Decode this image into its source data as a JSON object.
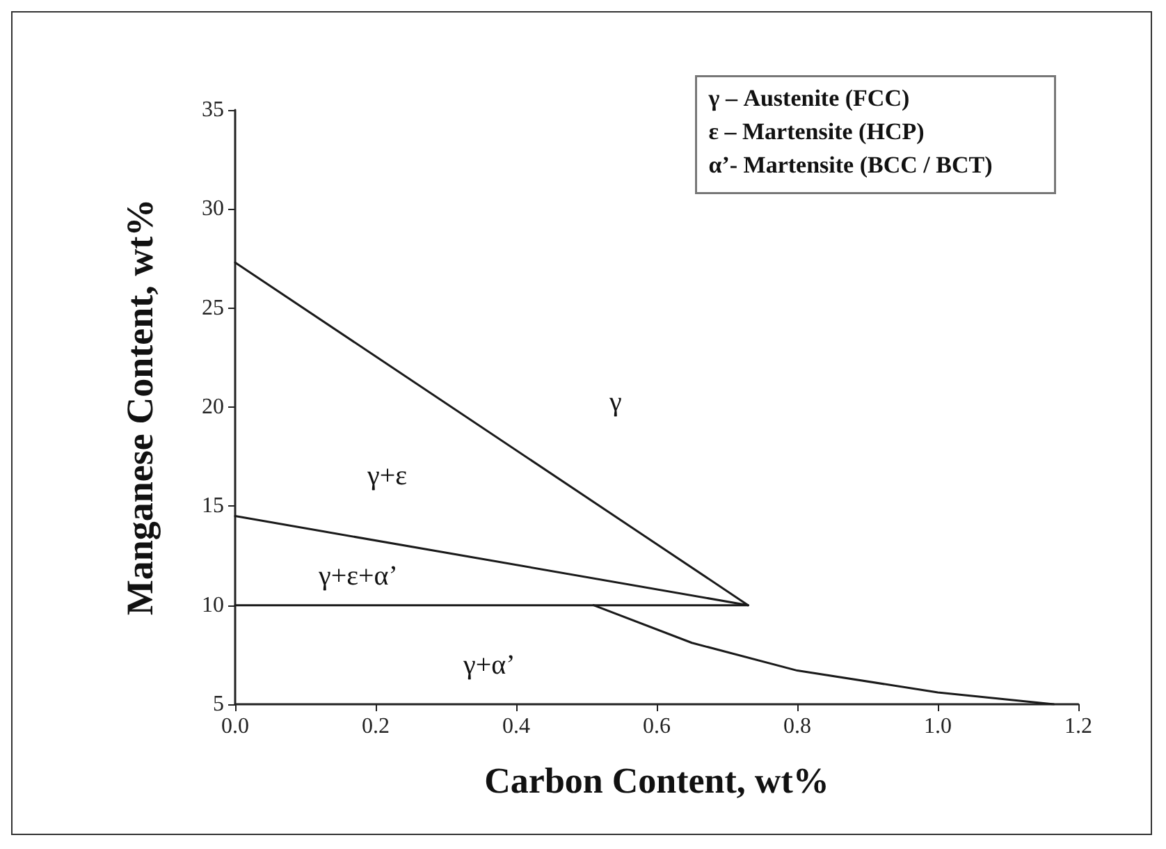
{
  "chart_data": {
    "type": "line",
    "xlabel": "Carbon Content, wt%",
    "ylabel": "Manganese Content, wt%",
    "xlim": [
      0,
      1.2
    ],
    "xticks": [
      {
        "value": 0,
        "label": "0.0"
      },
      {
        "value": 0.2,
        "label": "0.2"
      },
      {
        "value": 0.4,
        "label": "0.4"
      },
      {
        "value": 0.6,
        "label": "0.6"
      },
      {
        "value": 0.8,
        "label": "0.8"
      },
      {
        "value": 1.0,
        "label": "1.0"
      },
      {
        "value": 1.2,
        "label": "1.2"
      }
    ],
    "ylim": [
      5,
      35
    ],
    "yticks": [
      5,
      10,
      15,
      20,
      25,
      30,
      35
    ],
    "grid": false,
    "marker": "none",
    "line_style": "solid",
    "series": [
      {
        "color": "#1a1a1a",
        "x": [
          0,
          0.73
        ],
        "values": [
          27.3,
          10
        ]
      },
      {
        "color": "#1a1a1a",
        "x": [
          0,
          0.73
        ],
        "values": [
          14.5,
          10
        ]
      },
      {
        "color": "#1a1a1a",
        "x": [
          0,
          0.73
        ],
        "values": [
          10,
          10
        ]
      },
      {
        "color": "#1a1a1a",
        "x": [
          0.51,
          0.65,
          0.8,
          1.0,
          1.165
        ],
        "values": [
          10,
          8.1,
          6.7,
          5.6,
          5
        ]
      }
    ],
    "annotations": [
      "γ",
      "γ+ε",
      "γ+ε+α’",
      "γ+α’",
      "γ – Austenite (FCC)",
      "ε – Martensite (HCP)",
      "α’- Martensite (BCC / BCT)"
    ]
  }
}
